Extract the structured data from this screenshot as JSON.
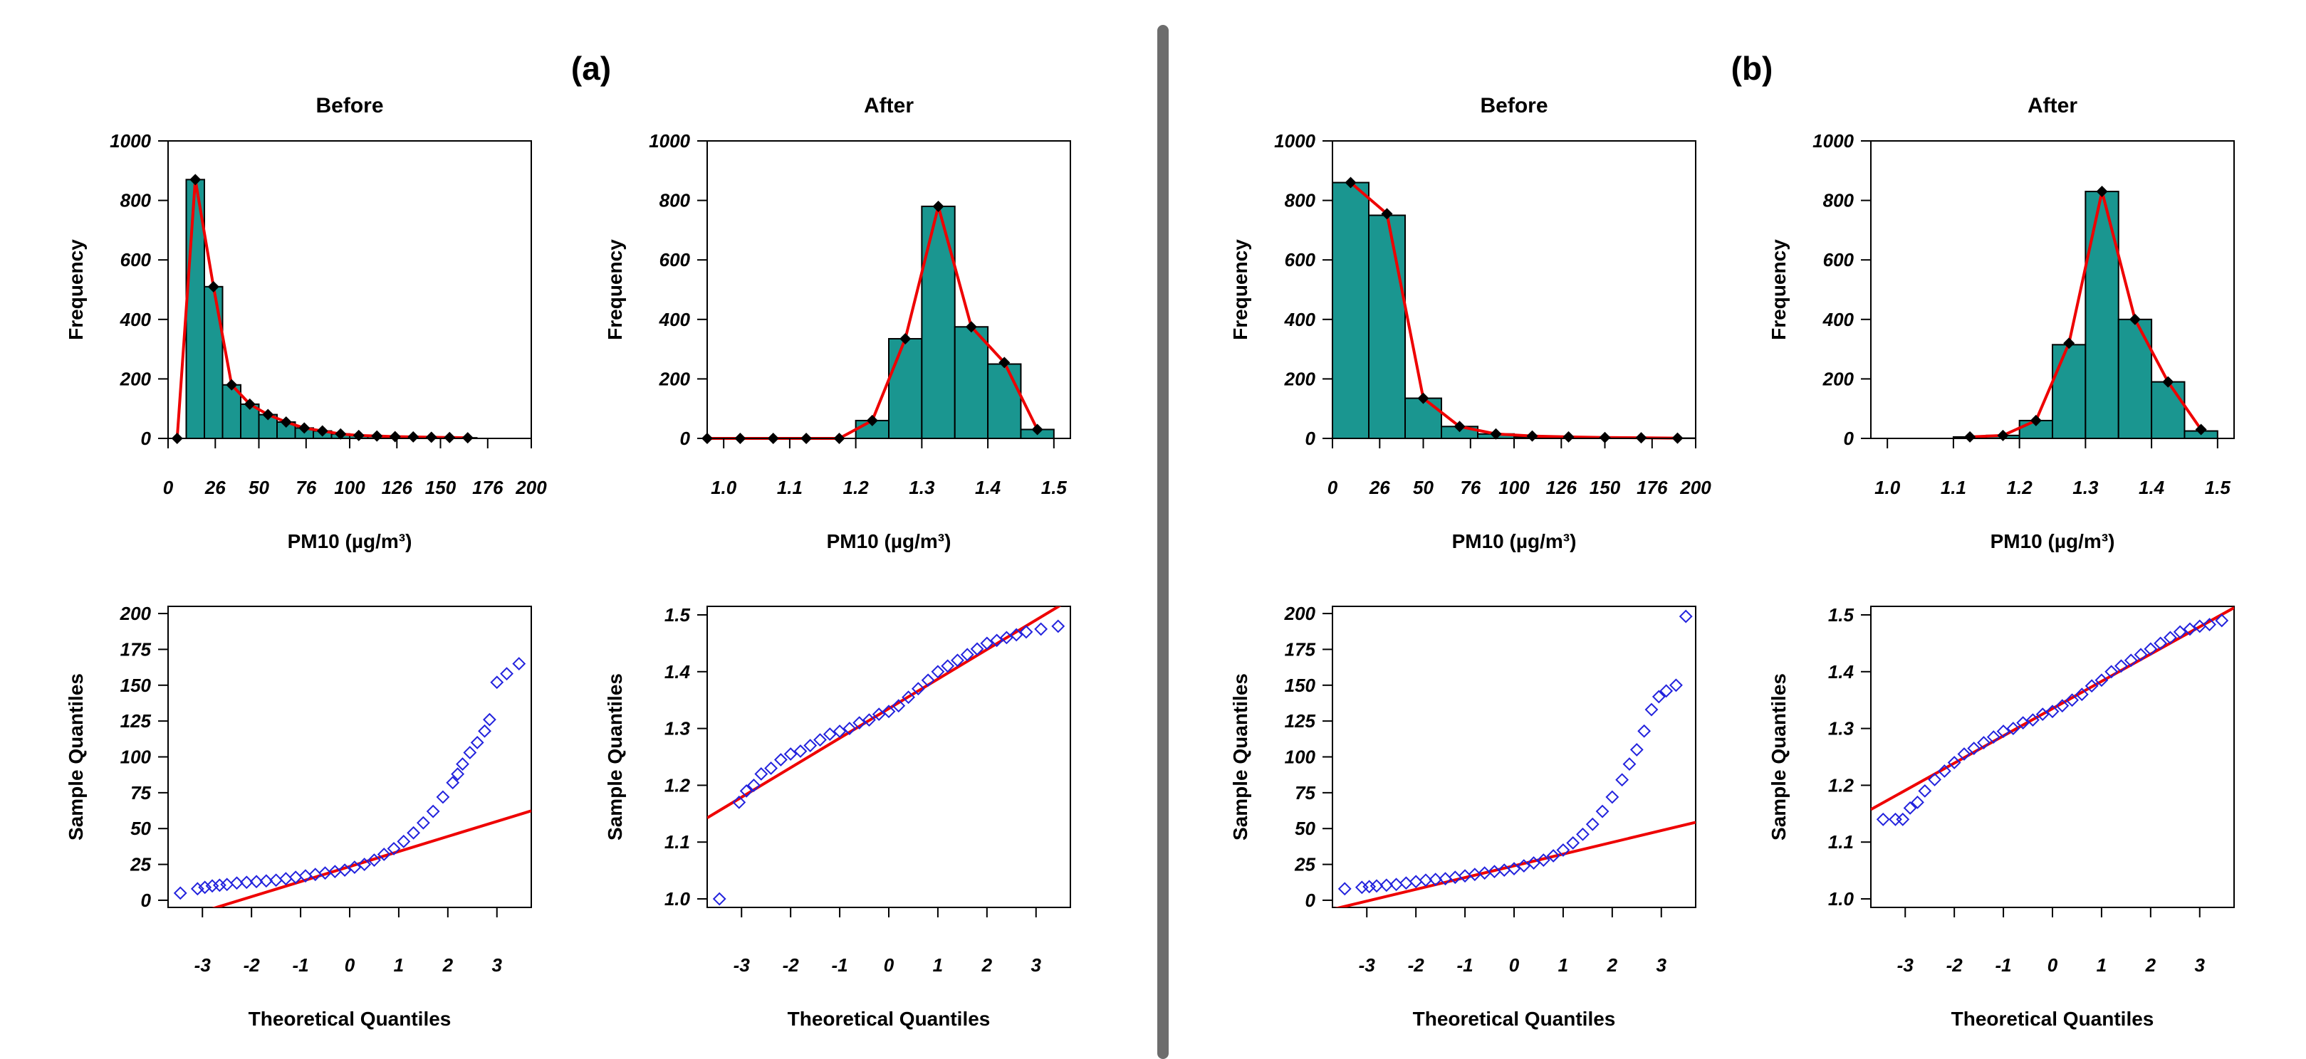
{
  "figure": {
    "panel_labels": [
      "(a)",
      "(b)"
    ],
    "colors": {
      "bar_fill": "#1a9690",
      "bar_edge": "#000000",
      "density_line": "#ee0000",
      "marker": "#000000",
      "qq_point": "#2222dd",
      "qq_line": "#ee0000",
      "divider": "#6d6d6d"
    }
  },
  "chart_data": [
    {
      "id": "a-hist-before",
      "panel": "(a)",
      "type": "bar",
      "title": "Before",
      "xlabel": "PM10 (µg/m³)",
      "ylabel": "Frequency",
      "xlim": [
        0,
        200
      ],
      "ylim": [
        0,
        1000
      ],
      "xticks": [
        0,
        26,
        50,
        76,
        100,
        126,
        150,
        176,
        200
      ],
      "xtick_labels": [
        "0",
        "26",
        "50",
        "76",
        "100",
        "126",
        "150",
        "176",
        "200"
      ],
      "yticks": [
        0,
        200,
        400,
        600,
        800,
        1000
      ],
      "ytick_labels": [
        "0",
        "200",
        "400",
        "600",
        "800",
        "1000"
      ],
      "bin_edges": [
        10,
        20,
        30,
        40,
        50,
        60,
        70,
        80,
        90,
        100,
        110,
        120,
        130,
        140,
        150,
        160,
        170
      ],
      "values": [
        870,
        510,
        180,
        115,
        80,
        55,
        35,
        25,
        15,
        10,
        8,
        6,
        5,
        4,
        3,
        2
      ],
      "line_points": [
        [
          5,
          0
        ],
        [
          15,
          870
        ],
        [
          25,
          510
        ],
        [
          35,
          180
        ],
        [
          45,
          115
        ],
        [
          55,
          80
        ],
        [
          65,
          55
        ],
        [
          75,
          35
        ],
        [
          85,
          25
        ],
        [
          95,
          15
        ],
        [
          105,
          10
        ],
        [
          115,
          8
        ],
        [
          125,
          6
        ],
        [
          135,
          5
        ],
        [
          145,
          4
        ],
        [
          155,
          3
        ],
        [
          165,
          2
        ]
      ]
    },
    {
      "id": "a-hist-after",
      "panel": "(a)",
      "type": "bar",
      "title": "After",
      "xlabel": "PM10 (µg/m³)",
      "ylabel": "Frequency",
      "xlim": [
        0.975,
        1.525
      ],
      "ylim": [
        0,
        1000
      ],
      "xticks": [
        1.0,
        1.1,
        1.2,
        1.3,
        1.4,
        1.5
      ],
      "xtick_labels": [
        "1.0",
        "1.1",
        "1.2",
        "1.3",
        "1.4",
        "1.5"
      ],
      "yticks": [
        0,
        200,
        400,
        600,
        800,
        1000
      ],
      "ytick_labels": [
        "0",
        "200",
        "400",
        "600",
        "800",
        "1000"
      ],
      "bin_edges": [
        0.95,
        1.0,
        1.05,
        1.1,
        1.15,
        1.2,
        1.25,
        1.3,
        1.35,
        1.4,
        1.45,
        1.5
      ],
      "values": [
        0,
        0,
        0,
        0,
        0,
        60,
        335,
        780,
        375,
        250,
        30
      ],
      "line_points": [
        [
          0.975,
          0
        ],
        [
          1.025,
          0
        ],
        [
          1.075,
          0
        ],
        [
          1.125,
          0
        ],
        [
          1.175,
          0
        ],
        [
          1.225,
          60
        ],
        [
          1.275,
          335
        ],
        [
          1.325,
          780
        ],
        [
          1.375,
          375
        ],
        [
          1.425,
          255
        ],
        [
          1.475,
          30
        ]
      ]
    },
    {
      "id": "b-hist-before",
      "panel": "(b)",
      "type": "bar",
      "title": "Before",
      "xlabel": "PM10 (µg/m³)",
      "ylabel": "Frequency",
      "xlim": [
        0,
        200
      ],
      "ylim": [
        0,
        1000
      ],
      "xticks": [
        0,
        26,
        50,
        76,
        100,
        126,
        150,
        176,
        200
      ],
      "xtick_labels": [
        "0",
        "26",
        "50",
        "76",
        "100",
        "126",
        "150",
        "176",
        "200"
      ],
      "yticks": [
        0,
        200,
        400,
        600,
        800,
        1000
      ],
      "ytick_labels": [
        "0",
        "200",
        "400",
        "600",
        "800",
        "1000"
      ],
      "bin_edges": [
        0,
        20,
        40,
        60,
        80,
        100,
        120,
        140,
        160,
        180,
        200
      ],
      "values": [
        860,
        750,
        135,
        40,
        15,
        5,
        3,
        2,
        1,
        1
      ],
      "line_points": [
        [
          10,
          860
        ],
        [
          30,
          755
        ],
        [
          50,
          135
        ],
        [
          70,
          40
        ],
        [
          90,
          15
        ],
        [
          110,
          8
        ],
        [
          130,
          5
        ],
        [
          150,
          3
        ],
        [
          170,
          2
        ],
        [
          190,
          1
        ]
      ]
    },
    {
      "id": "b-hist-after",
      "panel": "(b)",
      "type": "bar",
      "title": "After",
      "xlabel": "PM10 (µg/m³)",
      "ylabel": "Frequency",
      "xlim": [
        0.975,
        1.525
      ],
      "ylim": [
        0,
        1000
      ],
      "xticks": [
        1.0,
        1.1,
        1.2,
        1.3,
        1.4,
        1.5
      ],
      "xtick_labels": [
        "1.0",
        "1.1",
        "1.2",
        "1.3",
        "1.4",
        "1.5"
      ],
      "yticks": [
        0,
        200,
        400,
        600,
        800,
        1000
      ],
      "ytick_labels": [
        "0",
        "200",
        "400",
        "600",
        "800",
        "1000"
      ],
      "bin_edges": [
        1.1,
        1.15,
        1.2,
        1.25,
        1.3,
        1.35,
        1.4,
        1.45,
        1.5
      ],
      "values": [
        5,
        10,
        60,
        315,
        830,
        400,
        190,
        25
      ],
      "line_points": [
        [
          1.125,
          5
        ],
        [
          1.175,
          10
        ],
        [
          1.225,
          60
        ],
        [
          1.275,
          320
        ],
        [
          1.325,
          830
        ],
        [
          1.375,
          400
        ],
        [
          1.425,
          190
        ],
        [
          1.475,
          30
        ]
      ]
    },
    {
      "id": "a-qq-before",
      "panel": "(a)",
      "type": "scatter",
      "xlabel": "Theoretical Quantiles",
      "ylabel": "Sample Quantiles",
      "xlim": [
        -3.7,
        3.7
      ],
      "ylim": [
        -5,
        205
      ],
      "xticks": [
        -3,
        -2,
        -1,
        0,
        1,
        2,
        3
      ],
      "xtick_labels": [
        "-3",
        "-2",
        "-1",
        "0",
        "1",
        "2",
        "3"
      ],
      "yticks": [
        0,
        25,
        50,
        75,
        100,
        125,
        150,
        175,
        200
      ],
      "ytick_labels": [
        "0",
        "25",
        "50",
        "75",
        "100",
        "125",
        "150",
        "175",
        "200"
      ],
      "ref_line": {
        "intercept": 23.5,
        "slope": 10.5
      },
      "points": [
        [
          -3.45,
          5
        ],
        [
          -3.1,
          8
        ],
        [
          -2.95,
          9
        ],
        [
          -2.8,
          10
        ],
        [
          -2.65,
          10.5
        ],
        [
          -2.5,
          11
        ],
        [
          -2.3,
          12
        ],
        [
          -2.1,
          12.5
        ],
        [
          -1.9,
          13
        ],
        [
          -1.7,
          13.5
        ],
        [
          -1.5,
          14
        ],
        [
          -1.3,
          15
        ],
        [
          -1.1,
          16
        ],
        [
          -0.9,
          17
        ],
        [
          -0.7,
          18
        ],
        [
          -0.5,
          19
        ],
        [
          -0.3,
          20
        ],
        [
          -0.1,
          21
        ],
        [
          0.1,
          23
        ],
        [
          0.3,
          25
        ],
        [
          0.5,
          28
        ],
        [
          0.7,
          32
        ],
        [
          0.9,
          36
        ],
        [
          1.1,
          41
        ],
        [
          1.3,
          47
        ],
        [
          1.5,
          54
        ],
        [
          1.7,
          62
        ],
        [
          1.9,
          72
        ],
        [
          2.1,
          82
        ],
        [
          2.2,
          88
        ],
        [
          2.3,
          95
        ],
        [
          2.45,
          103
        ],
        [
          2.6,
          110
        ],
        [
          2.75,
          118
        ],
        [
          2.85,
          126
        ],
        [
          3.0,
          152
        ],
        [
          3.2,
          158
        ],
        [
          3.45,
          165
        ]
      ]
    },
    {
      "id": "a-qq-after",
      "panel": "(a)",
      "type": "scatter",
      "xlabel": "Theoretical Quantiles",
      "ylabel": "Sample Quantiles",
      "xlim": [
        -3.7,
        3.7
      ],
      "ylim": [
        0.985,
        1.515
      ],
      "xticks": [
        -3,
        -2,
        -1,
        0,
        1,
        2,
        3
      ],
      "xtick_labels": [
        "-3",
        "-2",
        "-1",
        "0",
        "1",
        "2",
        "3"
      ],
      "yticks": [
        1.0,
        1.1,
        1.2,
        1.3,
        1.4,
        1.5
      ],
      "ytick_labels": [
        "1.0",
        "1.1",
        "1.2",
        "1.3",
        "1.4",
        "1.5"
      ],
      "ref_line": {
        "intercept": 1.335,
        "slope": 0.052
      },
      "points": [
        [
          -3.45,
          1.0
        ],
        [
          -3.05,
          1.17
        ],
        [
          -2.9,
          1.19
        ],
        [
          -2.75,
          1.2
        ],
        [
          -2.6,
          1.22
        ],
        [
          -2.4,
          1.23
        ],
        [
          -2.2,
          1.245
        ],
        [
          -2.0,
          1.255
        ],
        [
          -1.8,
          1.26
        ],
        [
          -1.6,
          1.27
        ],
        [
          -1.4,
          1.28
        ],
        [
          -1.2,
          1.29
        ],
        [
          -1.0,
          1.295
        ],
        [
          -0.8,
          1.3
        ],
        [
          -0.6,
          1.31
        ],
        [
          -0.4,
          1.315
        ],
        [
          -0.2,
          1.325
        ],
        [
          0.0,
          1.33
        ],
        [
          0.2,
          1.34
        ],
        [
          0.4,
          1.355
        ],
        [
          0.6,
          1.37
        ],
        [
          0.8,
          1.385
        ],
        [
          1.0,
          1.4
        ],
        [
          1.2,
          1.41
        ],
        [
          1.4,
          1.42
        ],
        [
          1.6,
          1.43
        ],
        [
          1.8,
          1.44
        ],
        [
          2.0,
          1.45
        ],
        [
          2.2,
          1.455
        ],
        [
          2.4,
          1.46
        ],
        [
          2.6,
          1.465
        ],
        [
          2.8,
          1.47
        ],
        [
          3.1,
          1.475
        ],
        [
          3.45,
          1.48
        ]
      ]
    },
    {
      "id": "b-qq-before",
      "panel": "(b)",
      "type": "scatter",
      "xlabel": "Theoretical Quantiles",
      "ylabel": "Sample Quantiles",
      "xlim": [
        -3.7,
        3.7
      ],
      "ylim": [
        -5,
        205
      ],
      "xticks": [
        -3,
        -2,
        -1,
        0,
        1,
        2,
        3
      ],
      "xtick_labels": [
        "-3",
        "-2",
        "-1",
        "0",
        "1",
        "2",
        "3"
      ],
      "yticks": [
        0,
        25,
        50,
        75,
        100,
        125,
        150,
        175,
        200
      ],
      "ytick_labels": [
        "0",
        "25",
        "50",
        "75",
        "100",
        "125",
        "150",
        "175",
        "200"
      ],
      "ref_line": {
        "intercept": 24,
        "slope": 8.2
      },
      "points": [
        [
          -3.45,
          8
        ],
        [
          -3.1,
          9
        ],
        [
          -2.95,
          9.5
        ],
        [
          -2.8,
          10
        ],
        [
          -2.6,
          10.5
        ],
        [
          -2.4,
          11
        ],
        [
          -2.2,
          12
        ],
        [
          -2.0,
          13
        ],
        [
          -1.8,
          14
        ],
        [
          -1.6,
          14.5
        ],
        [
          -1.4,
          15
        ],
        [
          -1.2,
          16
        ],
        [
          -1.0,
          17
        ],
        [
          -0.8,
          18
        ],
        [
          -0.6,
          19
        ],
        [
          -0.4,
          20
        ],
        [
          -0.2,
          21
        ],
        [
          0.0,
          22
        ],
        [
          0.2,
          24
        ],
        [
          0.4,
          26
        ],
        [
          0.6,
          28
        ],
        [
          0.8,
          31
        ],
        [
          1.0,
          35
        ],
        [
          1.2,
          40
        ],
        [
          1.4,
          46
        ],
        [
          1.6,
          53
        ],
        [
          1.8,
          62
        ],
        [
          2.0,
          72
        ],
        [
          2.2,
          84
        ],
        [
          2.35,
          95
        ],
        [
          2.5,
          105
        ],
        [
          2.65,
          118
        ],
        [
          2.8,
          133
        ],
        [
          2.95,
          142
        ],
        [
          3.1,
          146
        ],
        [
          3.3,
          150
        ],
        [
          3.5,
          198
        ]
      ]
    },
    {
      "id": "b-qq-after",
      "panel": "(b)",
      "type": "scatter",
      "xlabel": "Theoretical Quantiles",
      "ylabel": "Sample Quantiles",
      "xlim": [
        -3.7,
        3.7
      ],
      "ylim": [
        0.985,
        1.515
      ],
      "xticks": [
        -3,
        -2,
        -1,
        0,
        1,
        2,
        3
      ],
      "xtick_labels": [
        "-3",
        "-2",
        "-1",
        "0",
        "1",
        "2",
        "3"
      ],
      "yticks": [
        1.0,
        1.1,
        1.2,
        1.3,
        1.4,
        1.5
      ],
      "ytick_labels": [
        "1.0",
        "1.1",
        "1.2",
        "1.3",
        "1.4",
        "1.5"
      ],
      "ref_line": {
        "intercept": 1.335,
        "slope": 0.048
      },
      "points": [
        [
          -3.45,
          1.14
        ],
        [
          -3.2,
          1.14
        ],
        [
          -3.05,
          1.14
        ],
        [
          -2.9,
          1.16
        ],
        [
          -2.75,
          1.17
        ],
        [
          -2.6,
          1.19
        ],
        [
          -2.4,
          1.21
        ],
        [
          -2.2,
          1.225
        ],
        [
          -2.0,
          1.24
        ],
        [
          -1.8,
          1.255
        ],
        [
          -1.6,
          1.265
        ],
        [
          -1.4,
          1.275
        ],
        [
          -1.2,
          1.285
        ],
        [
          -1.0,
          1.295
        ],
        [
          -0.8,
          1.3
        ],
        [
          -0.6,
          1.31
        ],
        [
          -0.4,
          1.315
        ],
        [
          -0.2,
          1.325
        ],
        [
          0.0,
          1.33
        ],
        [
          0.2,
          1.34
        ],
        [
          0.4,
          1.35
        ],
        [
          0.6,
          1.36
        ],
        [
          0.8,
          1.375
        ],
        [
          1.0,
          1.385
        ],
        [
          1.2,
          1.4
        ],
        [
          1.4,
          1.41
        ],
        [
          1.6,
          1.42
        ],
        [
          1.8,
          1.43
        ],
        [
          2.0,
          1.44
        ],
        [
          2.2,
          1.45
        ],
        [
          2.4,
          1.46
        ],
        [
          2.6,
          1.47
        ],
        [
          2.8,
          1.475
        ],
        [
          3.0,
          1.48
        ],
        [
          3.2,
          1.483
        ],
        [
          3.45,
          1.49
        ]
      ]
    }
  ]
}
